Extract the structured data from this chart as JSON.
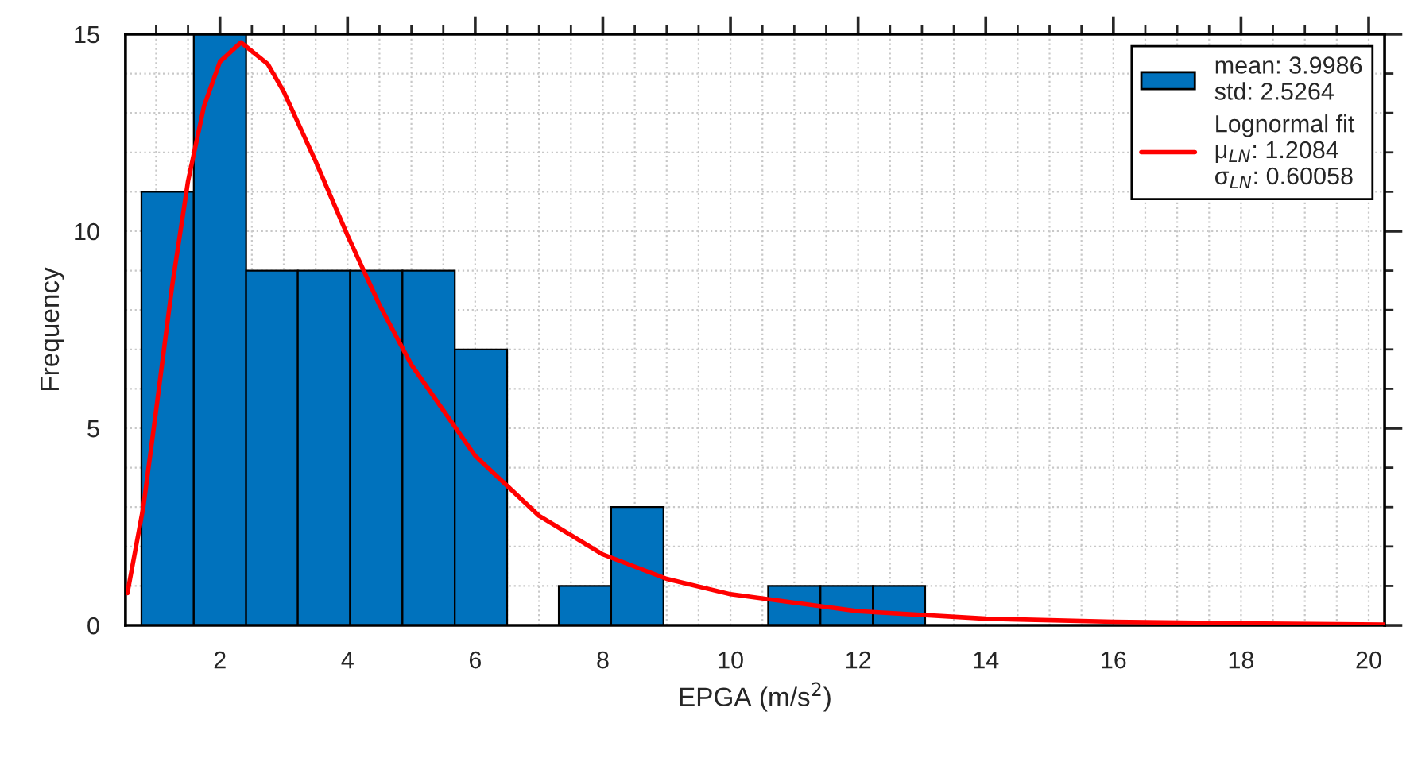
{
  "chart_data": {
    "type": "histogram",
    "xlabel": "EPGA (m/s$^{2}$)",
    "ylabel": "Frequency",
    "bins": [
      0.77,
      1.59,
      2.41,
      3.22,
      4.04,
      4.86,
      5.68,
      6.5,
      7.31,
      8.13,
      8.95,
      10.59,
      11.41,
      12.23,
      13.05
    ],
    "series": [
      {
        "name": "mean: 3.9986\nstd: 2.5264",
        "color": "#0072bd",
        "values": [
          11,
          15,
          9,
          9,
          9,
          9,
          7,
          0,
          1,
          3,
          0,
          1,
          1,
          1
        ]
      },
      {
        "type": "line",
        "name": "Lognormal fit\nμ$_{LN}$: 1.2084\nσ$_{LN}$: 0.60058",
        "color": "#ff0000",
        "x": [
          0.55,
          0.8,
          1.0,
          1.25,
          1.5,
          1.75,
          2.0,
          2.33,
          2.75,
          3.0,
          3.5,
          4.0,
          4.5,
          5.0,
          6.0,
          7.0,
          8.0,
          9.0,
          10.0,
          12.0,
          14.0,
          16.0,
          18.0,
          20.25
        ],
        "values": [
          0.82,
          3.01,
          5.46,
          8.6,
          11.27,
          13.17,
          14.3,
          14.79,
          14.24,
          13.54,
          11.77,
          9.89,
          8.13,
          6.61,
          4.3,
          2.78,
          1.8,
          1.18,
          0.79,
          0.36,
          0.17,
          0.09,
          0.05,
          0.02
        ]
      }
    ],
    "xlim": [
      0.52,
      20.25
    ],
    "xticks": [
      2,
      4,
      6,
      8,
      10,
      12,
      14,
      16,
      18,
      20
    ],
    "ylim": [
      0,
      15
    ],
    "yticks": [
      0,
      5,
      10,
      15
    ],
    "grid": true,
    "legend": "top right"
  }
}
